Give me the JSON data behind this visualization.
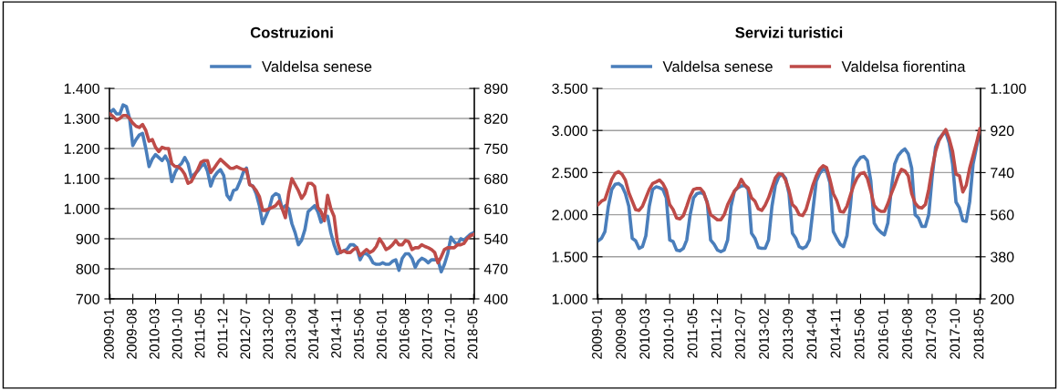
{
  "chart_data": [
    {
      "type": "line",
      "title": "Costruzioni",
      "legend": "top",
      "grid": "y",
      "marker": "none",
      "line_style": "solid",
      "categories": [
        "2009-01",
        null,
        null,
        null,
        null,
        null,
        null,
        "2009-08",
        null,
        null,
        null,
        null,
        null,
        null,
        "2010-03",
        null,
        null,
        null,
        null,
        null,
        null,
        "2010-10",
        null,
        null,
        null,
        null,
        null,
        null,
        "2011-05",
        null,
        null,
        null,
        null,
        null,
        null,
        "2011-12",
        null,
        null,
        null,
        null,
        null,
        null,
        "2012-07",
        null,
        null,
        null,
        null,
        null,
        null,
        "2013-02",
        null,
        null,
        null,
        null,
        null,
        null,
        "2013-09",
        null,
        null,
        null,
        null,
        null,
        null,
        "2014-04",
        null,
        null,
        null,
        null,
        null,
        null,
        "2014-11",
        null,
        null,
        null,
        null,
        null,
        null,
        "2015-06",
        null,
        null,
        null,
        null,
        null,
        null,
        "2016-01",
        null,
        null,
        null,
        null,
        null,
        null,
        "2016-08",
        null,
        null,
        null,
        null,
        null,
        null,
        "2017-03",
        null,
        null,
        null,
        null,
        null,
        null,
        "2017-10",
        null,
        null,
        null,
        null,
        null,
        null,
        "2018-05"
      ],
      "ylim": [
        700,
        1400
      ],
      "yticks": [
        700,
        800,
        900,
        {
          "value": 1000,
          "label": "1.000"
        },
        {
          "value": 1100,
          "label": "1.100"
        },
        {
          "value": 1200,
          "label": "1.200"
        },
        {
          "value": 1300,
          "label": "1.300"
        },
        {
          "value": 1400,
          "label": "1.400"
        }
      ],
      "y2lim": [
        400,
        890
      ],
      "y2ticks": [
        400,
        470,
        540,
        610,
        680,
        750,
        820,
        890
      ],
      "series": [
        {
          "name": "Valdelsa senese",
          "color": "#4a7ebb",
          "values": [
            1320,
            1330,
            1315,
            1315,
            1345,
            1340,
            1300,
            1210,
            1230,
            1245,
            1250,
            1200,
            1140,
            1165,
            1180,
            1170,
            1160,
            1175,
            1155,
            1090,
            1120,
            1140,
            1150,
            1170,
            1150,
            1105,
            1115,
            1125,
            1140,
            1150,
            1125,
            1075,
            1105,
            1120,
            1130,
            1110,
            1045,
            1030,
            1060,
            1065,
            1090,
            1120,
            1135,
            1080,
            1075,
            1050,
            1010,
            950,
            975,
            1000,
            1040,
            1050,
            1045,
            1000,
            1010,
            1000,
            950,
            920,
            880,
            895,
            930,
            990,
            1000,
            1010,
            990,
            955,
            975,
            975,
            920,
            880,
            850,
            855,
            860,
            865,
            880,
            880,
            870,
            830,
            850,
            850,
            840,
            820,
            815,
            815,
            820,
            815,
            815,
            825,
            830,
            795,
            835,
            850,
            850,
            835,
            805,
            825,
            835,
            830,
            820,
            830,
            830,
            830,
            790,
            815,
            850,
            905,
            890,
            880,
            900,
            895,
            905,
            915,
            920
          ]
        },
        {
          "color": "#be4b48",
          "axis": "y2",
          "values": [
            830,
            824,
            816,
            820,
            827,
            827,
            820,
            809,
            802,
            799,
            806,
            792,
            767,
            771,
            753,
            743,
            753,
            750,
            750,
            715,
            708,
            708,
            701,
            690,
            669,
            673,
            687,
            701,
            718,
            722,
            722,
            694,
            704,
            715,
            725,
            718,
            711,
            704,
            704,
            708,
            704,
            701,
            701,
            666,
            662,
            652,
            638,
            606,
            606,
            610,
            613,
            617,
            627,
            610,
            589,
            645,
            680,
            666,
            652,
            634,
            645,
            669,
            669,
            662,
            613,
            603,
            582,
            641,
            610,
            592,
            533,
            508,
            512,
            508,
            508,
            515,
            519,
            501,
            508,
            515,
            508,
            512,
            522,
            540,
            529,
            515,
            519,
            526,
            536,
            526,
            526,
            536,
            533,
            515,
            519,
            519,
            526,
            522,
            519,
            515,
            508,
            484,
            498,
            515,
            519,
            519,
            519,
            526,
            526,
            529,
            540,
            547,
            550
          ]
        }
      ]
    },
    {
      "type": "line",
      "title": "Servizi turistici",
      "legend": "top",
      "grid": "y",
      "marker": "none",
      "line_style": "solid",
      "categories": [
        "2009-01",
        null,
        null,
        null,
        null,
        null,
        null,
        "2009-08",
        null,
        null,
        null,
        null,
        null,
        null,
        "2010-03",
        null,
        null,
        null,
        null,
        null,
        null,
        "2010-10",
        null,
        null,
        null,
        null,
        null,
        null,
        "2011-05",
        null,
        null,
        null,
        null,
        null,
        null,
        "2011-12",
        null,
        null,
        null,
        null,
        null,
        null,
        "2012-07",
        null,
        null,
        null,
        null,
        null,
        null,
        "2013-02",
        null,
        null,
        null,
        null,
        null,
        null,
        "2013-09",
        null,
        null,
        null,
        null,
        null,
        null,
        "2014-04",
        null,
        null,
        null,
        null,
        null,
        null,
        "2014-11",
        null,
        null,
        null,
        null,
        null,
        null,
        "2015-06",
        null,
        null,
        null,
        null,
        null,
        null,
        "2016-01",
        null,
        null,
        null,
        null,
        null,
        null,
        "2016-08",
        null,
        null,
        null,
        null,
        null,
        null,
        "2017-03",
        null,
        null,
        null,
        null,
        null,
        null,
        "2017-10",
        null,
        null,
        null,
        null,
        null,
        null,
        "2018-05"
      ],
      "ylim": [
        1000,
        3500
      ],
      "yticks": [
        {
          "value": 1000,
          "label": "1.000"
        },
        {
          "value": 1500,
          "label": "1.500"
        },
        {
          "value": 2000,
          "label": "2.000"
        },
        {
          "value": 2500,
          "label": "2.500"
        },
        {
          "value": 3000,
          "label": "3.000"
        },
        {
          "value": 3500,
          "label": "3.500"
        }
      ],
      "y2lim": [
        200,
        1100
      ],
      "y2ticks": [
        200,
        380,
        560,
        740,
        920,
        {
          "value": 1100,
          "label": "1.100"
        }
      ],
      "series": [
        {
          "name": "Valdelsa senese",
          "color": "#4a7ebb",
          "values": [
            1690,
            1720,
            1800,
            2100,
            2300,
            2360,
            2370,
            2340,
            2250,
            2100,
            1720,
            1690,
            1600,
            1620,
            1750,
            2100,
            2300,
            2330,
            2320,
            2300,
            2200,
            1700,
            1680,
            1580,
            1570,
            1600,
            1700,
            2000,
            2200,
            2250,
            2260,
            2250,
            2150,
            1700,
            1650,
            1580,
            1560,
            1580,
            1700,
            2100,
            2280,
            2320,
            2340,
            2350,
            2300,
            1780,
            1720,
            1610,
            1600,
            1600,
            1700,
            2100,
            2350,
            2450,
            2480,
            2430,
            2250,
            1780,
            1720,
            1620,
            1600,
            1620,
            1700,
            2050,
            2400,
            2490,
            2540,
            2520,
            2380,
            1800,
            1720,
            1650,
            1620,
            1750,
            2100,
            2550,
            2630,
            2680,
            2690,
            2640,
            2400,
            1900,
            1830,
            1790,
            1760,
            1900,
            2300,
            2600,
            2700,
            2750,
            2780,
            2720,
            2550,
            2000,
            1960,
            1860,
            1860,
            2000,
            2450,
            2800,
            2900,
            2950,
            2980,
            2850,
            2600,
            2150,
            2080,
            1930,
            1920,
            2150,
            2600,
            2800,
            2980
          ]
        },
        {
          "name": "Valdelsa fiorentina",
          "color": "#be4b48",
          "axis": "y2",
          "values": [
            603,
            618,
            625,
            668,
            711,
            736,
            744,
            733,
            708,
            654,
            618,
            582,
            578,
            596,
            632,
            668,
            693,
            700,
            708,
            693,
            664,
            603,
            582,
            546,
            542,
            556,
            596,
            639,
            668,
            672,
            672,
            654,
            610,
            560,
            549,
            538,
            538,
            560,
            603,
            632,
            661,
            679,
            711,
            686,
            675,
            632,
            618,
            585,
            578,
            600,
            632,
            675,
            718,
            736,
            733,
            708,
            664,
            603,
            589,
            560,
            556,
            582,
            632,
            686,
            726,
            754,
            769,
            762,
            711,
            650,
            621,
            574,
            571,
            596,
            643,
            686,
            718,
            736,
            740,
            715,
            661,
            600,
            582,
            574,
            574,
            607,
            650,
            686,
            726,
            754,
            747,
            726,
            650,
            610,
            592,
            589,
            603,
            668,
            758,
            830,
            877,
            902,
            924,
            884,
            830,
            733,
            726,
            657,
            686,
            758,
            812,
            866,
            927
          ]
        }
      ]
    }
  ]
}
